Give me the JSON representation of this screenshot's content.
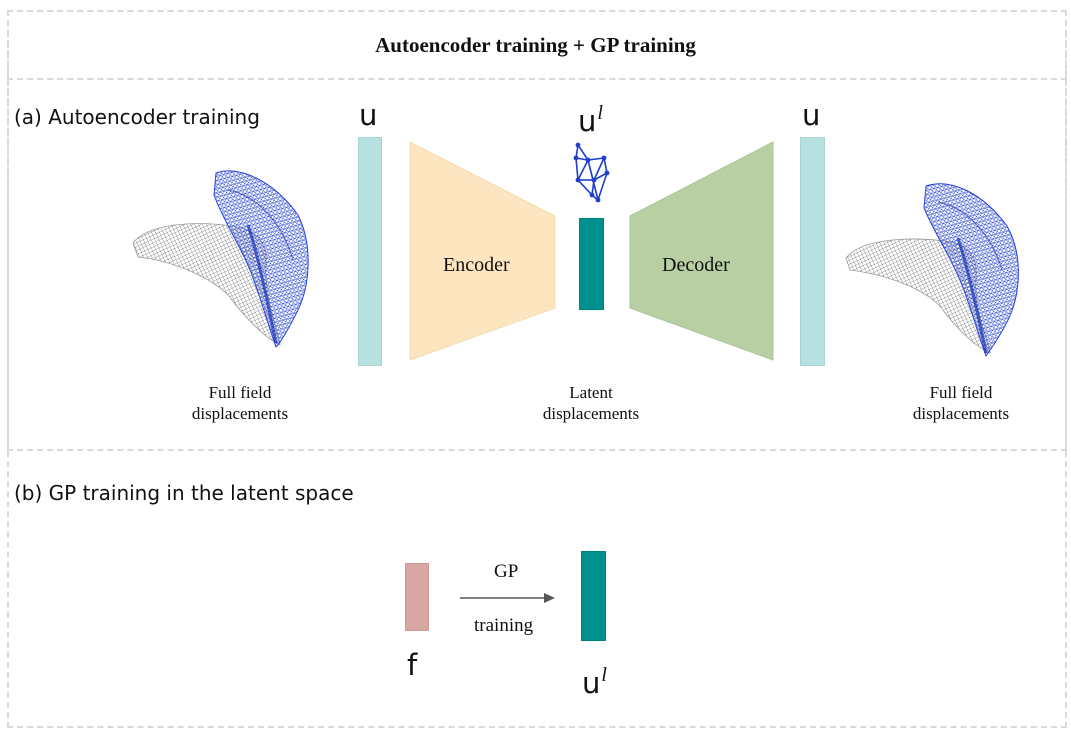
{
  "title": "Autoencoder training + GP training",
  "section_a": {
    "label": "(a) Autoencoder training",
    "input_symbol": "u",
    "output_symbol": "u",
    "latent_symbol": "u",
    "latent_superscript": "l",
    "encoder_label": "Encoder",
    "decoder_label": "Decoder",
    "left_caption_line1": "Full field",
    "left_caption_line2": "displacements",
    "latent_caption_line1": "Latent",
    "latent_caption_line2": "displacements",
    "right_caption_line1": "Full field",
    "right_caption_line2": "displacements"
  },
  "section_b": {
    "label": "(b) GP training in the latent space",
    "input_symbol": "f",
    "arrow_label_top": "GP",
    "arrow_label_bottom": "training",
    "output_symbol": "u",
    "output_superscript": "l"
  },
  "colors": {
    "input_bar": "#b7e0e0",
    "latent_bar": "#00908e",
    "encoder": "#fde6bf",
    "decoder": "#b7cfa3",
    "force_bar": "#d6a8a1",
    "mesh_blue": "#1f3fd0",
    "mesh_gray": "#8a8a8a",
    "frame": "#d9d9d9"
  }
}
